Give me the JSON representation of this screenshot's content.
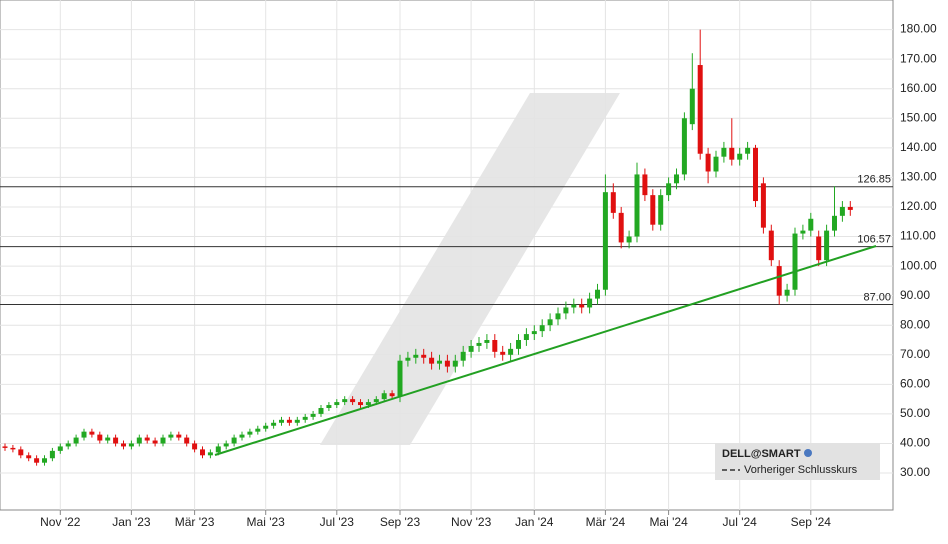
{
  "chart_data": {
    "type": "candlestick",
    "legend": {
      "title": "DELL@SMART",
      "entry": "Vorheriger Schlusskurs"
    },
    "categories": [
      null,
      null,
      null,
      null,
      null,
      null,
      null,
      "Nov '22",
      null,
      null,
      null,
      null,
      null,
      null,
      null,
      null,
      "Jan '23",
      null,
      null,
      null,
      null,
      null,
      null,
      null,
      "Mär '23",
      null,
      null,
      null,
      null,
      null,
      null,
      null,
      null,
      "Mai '23",
      null,
      null,
      null,
      null,
      null,
      null,
      null,
      null,
      "Jul '23",
      null,
      null,
      null,
      null,
      null,
      null,
      null,
      "Sep '23",
      null,
      null,
      null,
      null,
      null,
      null,
      null,
      null,
      "Nov '23",
      null,
      null,
      null,
      null,
      null,
      null,
      null,
      "Jan '24",
      null,
      null,
      null,
      null,
      null,
      null,
      null,
      null,
      "Mär '24",
      null,
      null,
      null,
      null,
      null,
      null,
      null,
      "Mai '24",
      null,
      null,
      null,
      null,
      null,
      null,
      null,
      null,
      "Jul '24",
      null,
      null,
      null,
      null,
      null,
      null,
      null,
      null,
      "Sep '24",
      null,
      null,
      null,
      null,
      null
    ],
    "open": [
      39,
      38.5,
      38,
      36,
      35,
      33.5,
      35,
      37.5,
      39,
      40,
      42,
      44,
      43,
      41,
      42,
      40,
      39,
      40,
      42,
      41,
      40,
      42,
      43,
      42,
      40,
      38,
      36,
      37,
      39,
      40,
      42,
      43,
      44,
      45,
      46,
      47,
      48,
      47,
      48,
      49,
      50,
      52,
      53,
      54,
      55,
      54,
      53,
      54,
      55,
      57,
      56,
      68,
      69,
      70,
      69,
      67,
      68,
      66,
      68,
      71,
      73,
      74,
      75,
      71,
      70,
      72,
      75,
      77,
      78,
      80,
      82,
      84,
      86,
      87,
      86,
      89,
      92,
      125,
      118,
      108,
      110,
      131,
      124,
      114,
      124,
      128,
      131,
      148,
      168,
      138,
      132,
      137,
      140,
      136,
      138,
      140,
      128,
      112,
      100,
      90,
      92,
      111,
      112,
      110,
      102,
      112,
      117,
      120
    ],
    "high": [
      40,
      39.5,
      39,
      37,
      36,
      36,
      38.5,
      40,
      41,
      43,
      45,
      45,
      44,
      43,
      43,
      41,
      41,
      43,
      43,
      42,
      43,
      44,
      44,
      43,
      41,
      39,
      38,
      40,
      41,
      43,
      44,
      45,
      46,
      47,
      48,
      49,
      49,
      49,
      50,
      51,
      53,
      54,
      55,
      56,
      56,
      55,
      55,
      56,
      58,
      58,
      70,
      71,
      72,
      72,
      71,
      70,
      70,
      70,
      73,
      75,
      76,
      77,
      77,
      73,
      74,
      77,
      79,
      80,
      82,
      84,
      86,
      88,
      89,
      89,
      91,
      94,
      131,
      128,
      120,
      112,
      135,
      133,
      126,
      126,
      130,
      133,
      152,
      172,
      180,
      140,
      139,
      142,
      150,
      140,
      142,
      141,
      130,
      114,
      102,
      94,
      113,
      114,
      118,
      112,
      114,
      127,
      122,
      122
    ],
    "low": [
      37.5,
      37,
      35,
      34,
      32.5,
      32.5,
      34,
      36.5,
      38,
      39,
      41,
      42,
      40,
      40,
      39,
      38,
      38,
      39,
      40,
      39,
      39,
      41,
      41,
      39,
      37,
      35,
      35,
      36,
      38,
      39,
      41,
      42,
      43,
      44,
      45,
      46,
      46,
      46,
      47,
      48,
      49,
      51,
      52,
      53,
      53,
      52,
      52,
      53,
      54,
      55,
      54,
      66,
      67,
      67,
      65,
      65,
      64,
      64,
      66,
      69,
      71,
      72,
      69,
      68,
      68,
      70,
      73,
      75,
      76,
      78,
      80,
      82,
      84,
      84,
      84,
      87,
      90,
      116,
      106,
      106,
      108,
      122,
      112,
      112,
      122,
      126,
      129,
      146,
      136,
      128,
      130,
      135,
      134,
      134,
      136,
      120,
      111,
      100,
      87,
      88,
      90,
      109,
      110,
      100,
      100,
      110,
      115,
      117
    ],
    "close": [
      38.5,
      38,
      36,
      35,
      33.5,
      35,
      37.5,
      39,
      40,
      42,
      44,
      43,
      41,
      42,
      40,
      39,
      40,
      42,
      41,
      40,
      42,
      43,
      42,
      40,
      38,
      36,
      37,
      39,
      40,
      42,
      43,
      44,
      45,
      46,
      47,
      48,
      47,
      48,
      49,
      50,
      52,
      53,
      54,
      55,
      54,
      53,
      54,
      55,
      57,
      56,
      68,
      69,
      70,
      69,
      67,
      68,
      66,
      68,
      71,
      73,
      74,
      75,
      71,
      70,
      72,
      75,
      77,
      78,
      80,
      82,
      84,
      86,
      87,
      86,
      89,
      92,
      125,
      118,
      108,
      110,
      131,
      124,
      114,
      124,
      128,
      131,
      150,
      160,
      138,
      132,
      137,
      140,
      136,
      138,
      140,
      122,
      113,
      102,
      90,
      92,
      111,
      112,
      116,
      102,
      112,
      117,
      120,
      119
    ],
    "up_color": "#22a822",
    "down_color": "#e01010",
    "levels": [
      {
        "value": 126.85,
        "label": "126.85"
      },
      {
        "value": 106.57,
        "label": "106.57"
      },
      {
        "value": 87,
        "label": "87.00"
      }
    ],
    "ylim": [
      17.5,
      190
    ],
    "yticks": [
      {
        "value": 30,
        "label": "30.00"
      },
      {
        "value": 40,
        "label": "40.00"
      },
      {
        "value": 50,
        "label": "50.00"
      },
      {
        "value": 60,
        "label": "60.00"
      },
      {
        "value": 70,
        "label": "70.00"
      },
      {
        "value": 80,
        "label": "80.00"
      },
      {
        "value": 90,
        "label": "90.00"
      },
      {
        "value": 100,
        "label": "100.00"
      },
      {
        "value": 110,
        "label": "110.00"
      },
      {
        "value": 120,
        "label": "120.00"
      },
      {
        "value": 130,
        "label": "130.00"
      },
      {
        "value": 140,
        "label": "140.00"
      },
      {
        "value": 150,
        "label": "150.00"
      },
      {
        "value": 160,
        "label": "160.00"
      },
      {
        "value": 170,
        "label": "170.00"
      },
      {
        "value": 180,
        "label": "180.00"
      }
    ],
    "grid": true
  }
}
